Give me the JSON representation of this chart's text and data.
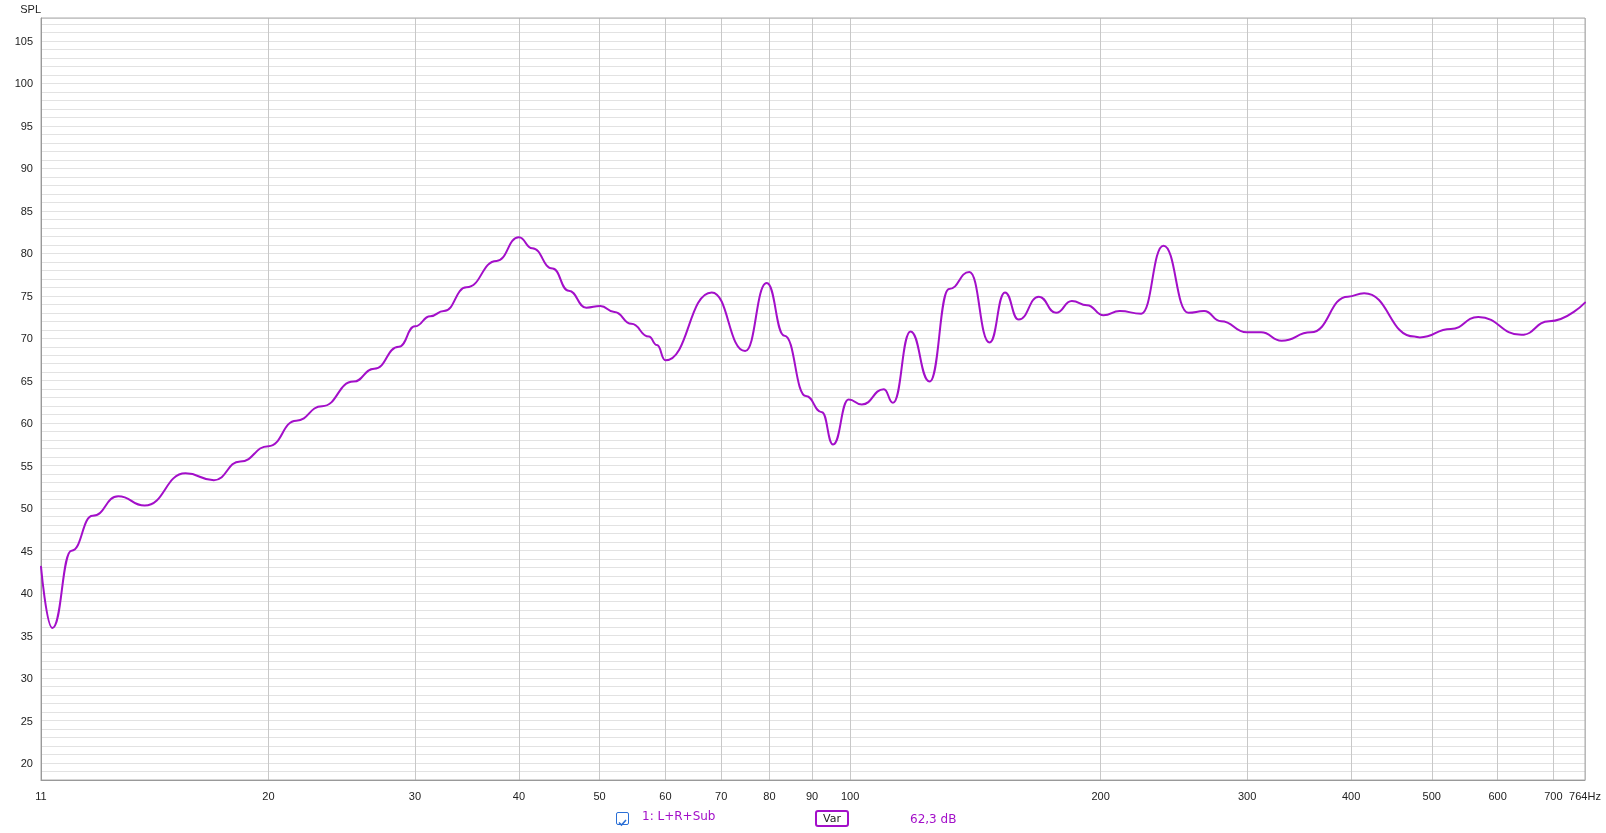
{
  "chart_data": {
    "type": "line",
    "ylabel": "SPL",
    "x": [
      10.66,
      11.0,
      11.6,
      12.3,
      13.2,
      14.2,
      15.9,
      17.2,
      18.5,
      20,
      21.6,
      23.2,
      25.3,
      26.8,
      28.7,
      30,
      31.3,
      32.5,
      34.6,
      37.6,
      40,
      41.5,
      43.9,
      45.9,
      48.2,
      50.1,
      52.1,
      54.6,
      57.3,
      58.6,
      60,
      68.2,
      74.8,
      79.4,
      83.4,
      88.5,
      92.5,
      95.4,
      99.6,
      103.3,
      109.8,
      112.6,
      118.2,
      124.6,
      131.5,
      139.1,
      147.1,
      153.5,
      159.4,
      168.6,
      176.8,
      184.7,
      192.6,
      201.6,
      210.9,
      223.8,
      238,
      254.9,
      266.3,
      279.1,
      299.7,
      311.8,
      330,
      357.9,
      396.4,
      414.7,
      476.3,
      483.8,
      527,
      568.6,
      640.8,
      692,
      764
    ],
    "series": [
      {
        "name": "1: L+R+Sub",
        "color": "#a30fc9",
        "values": [
          43.1,
          35.9,
          45,
          49.1,
          51.4,
          50.3,
          54.1,
          53.3,
          55.5,
          57.3,
          60.3,
          62.0,
          64.9,
          66.4,
          69.0,
          71.4,
          72.6,
          73.2,
          76.0,
          79.1,
          81.9,
          80.6,
          78.2,
          75.6,
          73.6,
          73.8,
          73.1,
          71.7,
          70.2,
          69.2,
          67.4,
          75.4,
          68.5,
          76.5,
          70.3,
          63.2,
          61.3,
          57.5,
          62.8,
          62.2,
          64.0,
          62.4,
          70.8,
          64.9,
          75.8,
          77.8,
          69.5,
          75.4,
          72.2,
          74.9,
          73.0,
          74.4,
          73.9,
          72.7,
          73.2,
          72.9,
          80.9,
          73.0,
          73.2,
          72.0,
          70.7,
          70.7,
          69.7,
          70.7,
          74.9,
          75.3,
          70.2,
          70.1,
          71.1,
          72.5,
          70.4,
          72.0,
          74.2
        ]
      }
    ],
    "log": "x",
    "xlim": [
      10.66,
      764
    ],
    "xticks": [
      {
        "value": 10.66,
        "label": "11"
      },
      20,
      30,
      40,
      50,
      60,
      70,
      80,
      90,
      100,
      200,
      300,
      400,
      500,
      600,
      700,
      {
        "value": 764,
        "label": "764Hz"
      }
    ],
    "ylim": [
      18,
      107.7
    ],
    "yticks": [
      20,
      25,
      30,
      35,
      40,
      45,
      50,
      55,
      60,
      65,
      70,
      75,
      80,
      85,
      90,
      95,
      100,
      105
    ],
    "grid": true,
    "legend": "bottom",
    "marker": "none",
    "line_style": "solid",
    "annotations": [
      "Var",
      "62,3 dB"
    ]
  }
}
